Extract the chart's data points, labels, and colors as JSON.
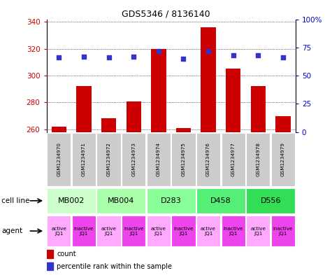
{
  "title": "GDS5346 / 8136140",
  "gsm_labels": [
    "GSM1234970",
    "GSM1234971",
    "GSM1234972",
    "GSM1234973",
    "GSM1234974",
    "GSM1234975",
    "GSM1234976",
    "GSM1234977",
    "GSM1234978",
    "GSM1234979"
  ],
  "bar_values": [
    262,
    292,
    268,
    281,
    320,
    261,
    336,
    305,
    292,
    270
  ],
  "percentile_values": [
    66,
    67,
    66,
    67,
    72,
    65,
    72,
    68,
    68,
    66
  ],
  "ymin": 258,
  "ymax": 342,
  "yticks": [
    260,
    280,
    300,
    320,
    340
  ],
  "right_yticks": [
    0,
    25,
    50,
    75,
    100
  ],
  "bar_color": "#cc0000",
  "dot_color": "#3333cc",
  "cell_lines": [
    {
      "label": "MB002",
      "cols": [
        0,
        1
      ],
      "color": "#ccffcc"
    },
    {
      "label": "MB004",
      "cols": [
        2,
        3
      ],
      "color": "#aaffaa"
    },
    {
      "label": "D283",
      "cols": [
        4,
        5
      ],
      "color": "#88ff99"
    },
    {
      "label": "D458",
      "cols": [
        6,
        7
      ],
      "color": "#55ee77"
    },
    {
      "label": "D556",
      "cols": [
        8,
        9
      ],
      "color": "#33dd55"
    }
  ],
  "agents": [
    {
      "label": "active\nJQ1",
      "col": 0,
      "color": "#ffaaff"
    },
    {
      "label": "inactive\nJQ1",
      "col": 1,
      "color": "#ee44ee"
    },
    {
      "label": "active\nJQ1",
      "col": 2,
      "color": "#ffaaff"
    },
    {
      "label": "inactive\nJQ1",
      "col": 3,
      "color": "#ee44ee"
    },
    {
      "label": "active\nJQ1",
      "col": 4,
      "color": "#ffaaff"
    },
    {
      "label": "inactive\nJQ1",
      "col": 5,
      "color": "#ee44ee"
    },
    {
      "label": "active\nJQ1",
      "col": 6,
      "color": "#ffaaff"
    },
    {
      "label": "inactive\nJQ1",
      "col": 7,
      "color": "#ee44ee"
    },
    {
      "label": "active\nJQ1",
      "col": 8,
      "color": "#ffaaff"
    },
    {
      "label": "inactive\nJQ1",
      "col": 9,
      "color": "#ee44ee"
    }
  ],
  "gsm_box_color": "#cccccc",
  "left_label_color": "#cc0000",
  "right_label_color": "#0000cc",
  "legend_count_color": "#cc0000",
  "legend_dot_color": "#3333cc"
}
